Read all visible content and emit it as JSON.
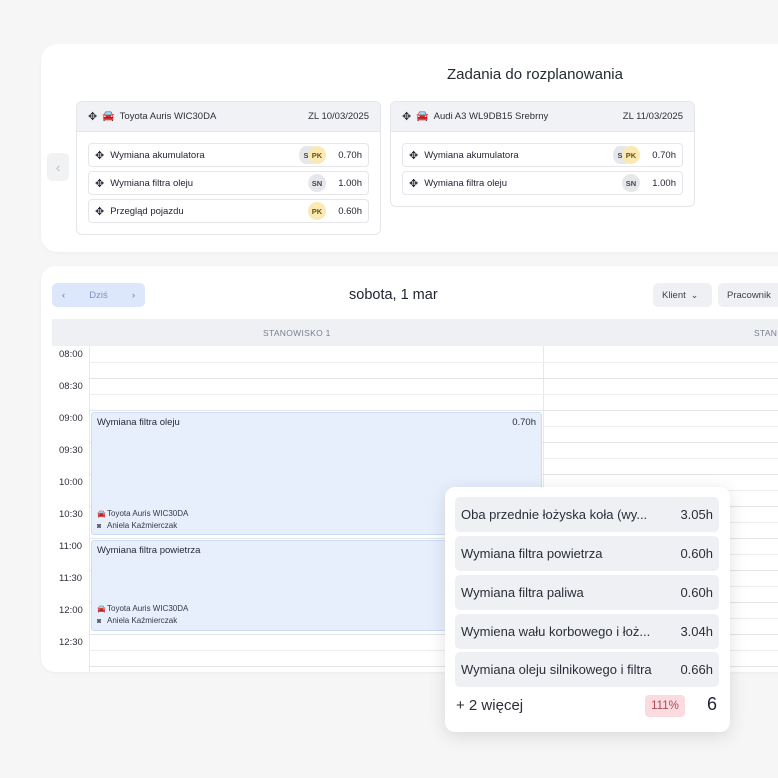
{
  "unscheduled": {
    "title": "Zadania do rozplanowania",
    "prev_icon": "chevron-left",
    "cards": [
      {
        "vehicle": "Toyota Auris WIC30DA",
        "order": "ZL 10/03/2025",
        "tasks": [
          {
            "name": "Wymiana akumulatora",
            "badges": [
              "S",
              "PK"
            ],
            "hours": "0.70h"
          },
          {
            "name": "Wymiana filtra oleju",
            "badges": [
              "SN"
            ],
            "hours": "1.00h"
          },
          {
            "name": "Przegląd pojazdu",
            "badges": [
              "PK"
            ],
            "hours": "0.60h"
          }
        ]
      },
      {
        "vehicle": "Audi A3 WL9DB15 Srebrny",
        "order": "ZL 11/03/2025",
        "tasks": [
          {
            "name": "Wymiana akumulatora",
            "badges": [
              "S",
              "PK"
            ],
            "hours": "0.70h"
          },
          {
            "name": "Wymiana filtra oleju",
            "badges": [
              "SN"
            ],
            "hours": "1.00h"
          }
        ]
      }
    ]
  },
  "calendar": {
    "today_label": "Dziś",
    "date_title": "sobota, 1 mar",
    "filters": {
      "client": "Klient",
      "worker": "Pracownik"
    },
    "columns": [
      "STANOWISKO 1",
      "STAN"
    ],
    "times": [
      "08:00",
      "08:30",
      "09:00",
      "09:30",
      "10:00",
      "10:30",
      "11:00",
      "11:30",
      "12:00",
      "12:30"
    ],
    "events": [
      {
        "title": "Wymiana filtra oleju",
        "hours": "0.70h",
        "vehicle": "Toyota Auris WIC30DA",
        "worker": "Aniela Kaźmierczak"
      },
      {
        "title": "Wymiana filtra powietrza",
        "hours": "",
        "vehicle": "Toyota Auris WIC30DA",
        "worker": "Aniela Kaźmierczak"
      }
    ]
  },
  "popover": {
    "items": [
      {
        "name": "Oba przednie łożyska koła (wy...",
        "hours": "3.05h"
      },
      {
        "name": "Wymiana filtra powietrza",
        "hours": "0.60h"
      },
      {
        "name": "Wymiana filtra paliwa",
        "hours": "0.60h"
      },
      {
        "name": "Wymiena wału korbowego i łoż...",
        "hours": "3.04h"
      },
      {
        "name": "Wymiana oleju silnikowego i filtra",
        "hours": "0.66h"
      }
    ],
    "more": "+ 2 więcej",
    "utilization": "111%",
    "count": "6"
  },
  "colors": {
    "accent": "#dde7fb",
    "event_bg": "#e8effc",
    "over_capacity": "#fadbe0",
    "badge_pk": "#fbe9b4"
  }
}
